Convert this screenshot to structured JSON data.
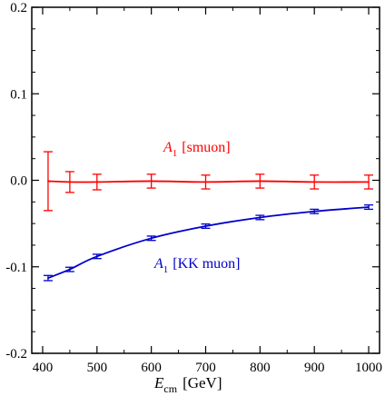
{
  "chart_data": {
    "type": "line",
    "xlabel_main": "E",
    "xlabel_sub": "cm",
    "xlabel_unit": "[GeV]",
    "ylabel": "",
    "xlim": [
      380,
      1020
    ],
    "ylim": [
      -0.2,
      0.2
    ],
    "x_ticks": [
      400,
      500,
      600,
      700,
      800,
      900,
      1000
    ],
    "x_tick_labels": [
      "400",
      "500",
      "600",
      "700",
      "800",
      "900",
      "1000"
    ],
    "y_ticks": [
      -0.2,
      -0.1,
      0.0,
      0.1,
      0.2
    ],
    "y_tick_labels": [
      "-0.2",
      "-0.1",
      "0.0",
      "0.1",
      "0.2"
    ],
    "grid": false,
    "series": [
      {
        "name_main": "A",
        "name_sub": "1",
        "name_rest": "[smuon]",
        "color": "#ff0000",
        "x": [
          410,
          450,
          500,
          600,
          700,
          800,
          900,
          1000
        ],
        "y": [
          -0.001,
          -0.002,
          -0.002,
          -0.001,
          -0.002,
          -0.001,
          -0.002,
          -0.002
        ],
        "err": [
          0.034,
          0.012,
          0.009,
          0.008,
          0.008,
          0.008,
          0.008,
          0.008
        ]
      },
      {
        "name_main": "A",
        "name_sub": "1",
        "name_rest": "[KK muon]",
        "color": "#0000cc",
        "x": [
          410,
          450,
          500,
          600,
          700,
          800,
          900,
          1000
        ],
        "y": [
          -0.113,
          -0.103,
          -0.088,
          -0.067,
          -0.053,
          -0.043,
          -0.036,
          -0.031
        ],
        "err": [
          0.003,
          0.0025,
          0.0025,
          0.0025,
          0.0025,
          0.0025,
          0.0025,
          0.0025
        ]
      }
    ]
  }
}
